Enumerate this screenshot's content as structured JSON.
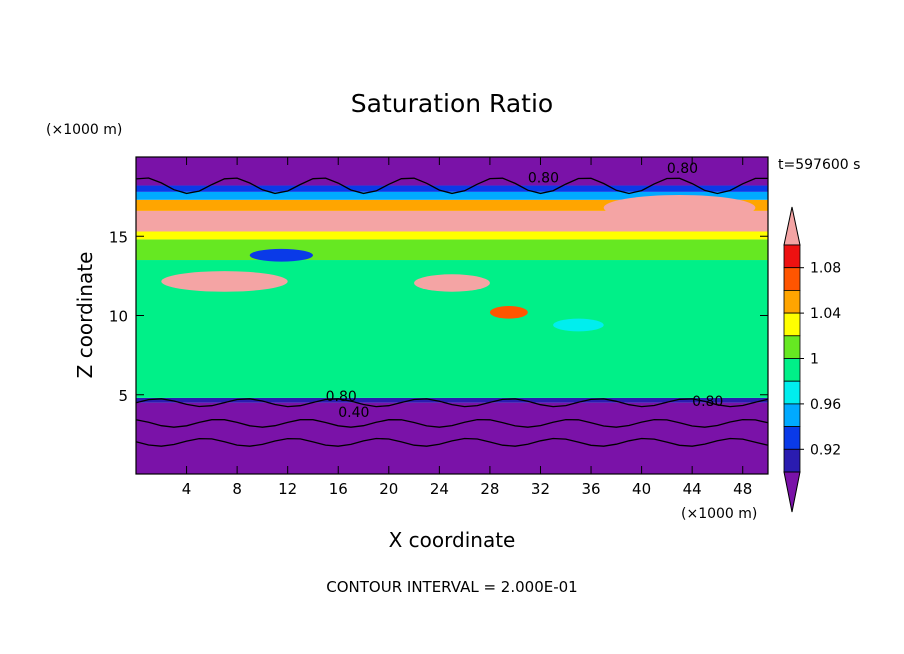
{
  "chart_data": {
    "type": "heatmap",
    "title": "Saturation Ratio",
    "xlabel": "X coordinate",
    "ylabel": "Z coordinate",
    "x_unit": "(×1000 m)",
    "y_unit": "(×1000 m)",
    "time_label": "t=597600 s",
    "footer": "CONTOUR INTERVAL = 2.000E-01",
    "xlim": [
      0,
      50
    ],
    "ylim": [
      0,
      20
    ],
    "x_ticks": [
      "4",
      "8",
      "12",
      "16",
      "20",
      "24",
      "28",
      "32",
      "36",
      "40",
      "44",
      "48"
    ],
    "y_ticks": [
      "5",
      "10",
      "15"
    ],
    "contour_labels": [
      "0.80",
      "0.80",
      "0.80",
      "0.40",
      "0.80"
    ],
    "colorbar": {
      "labels": [
        "0.92",
        "0.96",
        "1",
        "1.04",
        "1.08"
      ],
      "bins": [
        {
          "lo": 0.88,
          "hi": 0.9,
          "color": "#7a12a8"
        },
        {
          "lo": 0.9,
          "hi": 0.92,
          "color": "#2a1cb0"
        },
        {
          "lo": 0.92,
          "hi": 0.94,
          "color": "#0a3ae8"
        },
        {
          "lo": 0.94,
          "hi": 0.96,
          "color": "#00aaff"
        },
        {
          "lo": 0.96,
          "hi": 0.98,
          "color": "#00eeee"
        },
        {
          "lo": 0.98,
          "hi": 1.0,
          "color": "#00f088"
        },
        {
          "lo": 1.0,
          "hi": 1.02,
          "color": "#66e822"
        },
        {
          "lo": 1.02,
          "hi": 1.04,
          "color": "#ffff00"
        },
        {
          "lo": 1.04,
          "hi": 1.06,
          "color": "#ffa500"
        },
        {
          "lo": 1.06,
          "hi": 1.08,
          "color": "#ff5500"
        },
        {
          "lo": 1.08,
          "hi": 1.1,
          "color": "#ee1111"
        },
        {
          "lo": 1.1,
          "hi": 1.12,
          "color": "#f4a4a4"
        }
      ]
    },
    "regions": [
      {
        "z0": 0,
        "z1": 4.5,
        "value": 0.88
      },
      {
        "z0": 4.5,
        "z1": 4.8,
        "value": 0.91
      },
      {
        "z0": 4.8,
        "z1": 13.5,
        "value": 0.99
      },
      {
        "z0": 13.5,
        "z1": 14.8,
        "value": 1.01
      },
      {
        "z0": 14.8,
        "z1": 15.3,
        "value": 1.03
      },
      {
        "z0": 15.3,
        "z1": 16.6,
        "value": 1.11
      },
      {
        "z0": 16.6,
        "z1": 17.3,
        "value": 1.05
      },
      {
        "z0": 17.3,
        "z1": 17.8,
        "value": 0.95
      },
      {
        "z0": 17.8,
        "z1": 18.2,
        "value": 0.92
      },
      {
        "z0": 18.2,
        "z1": 20,
        "value": 0.88
      }
    ],
    "patches": [
      {
        "x0": 2,
        "x1": 12,
        "z0": 11.5,
        "z1": 12.8,
        "value": 1.11
      },
      {
        "x0": 22,
        "x1": 28,
        "z0": 11.5,
        "z1": 12.6,
        "value": 1.11
      },
      {
        "x0": 9,
        "x1": 14,
        "z0": 13.4,
        "z1": 14.2,
        "value": 0.93
      },
      {
        "x0": 37,
        "x1": 49,
        "z0": 16.0,
        "z1": 17.6,
        "value": 1.11
      },
      {
        "x0": 28,
        "x1": 31,
        "z0": 9.8,
        "z1": 10.6,
        "value": 1.07
      },
      {
        "x0": 33,
        "x1": 37,
        "z0": 9.0,
        "z1": 9.8,
        "value": 0.97
      }
    ],
    "grid": false
  }
}
